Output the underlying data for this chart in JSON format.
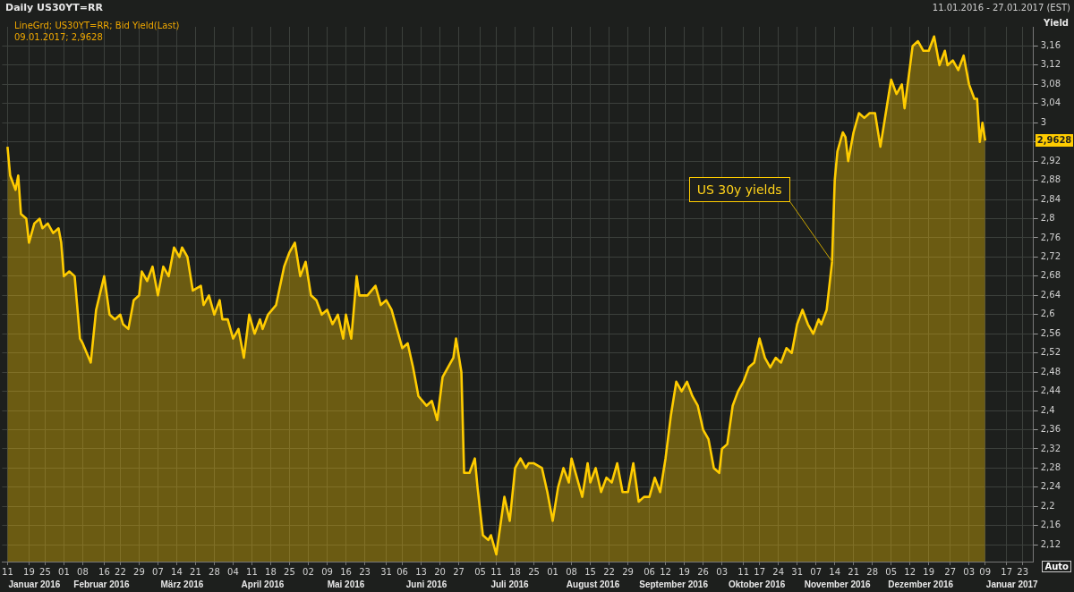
{
  "chart_data": {
    "type": "area",
    "title": "Daily US30YT=RR",
    "subtitle": "LineGrd; US30YT=RR; Bid Yield(Last)",
    "ylabel": "Yield",
    "annotations": [
      "09.01.2017; 2,9628",
      "11.01.2016 - 27.01.2017 (EST)",
      "Auto",
      "2,9628",
      {
        "text": "US 30y yields",
        "x": "2016-11-13",
        "y": 2.71
      }
    ],
    "x": [
      "2016-01-11",
      "2016-01-12",
      "2016-01-14",
      "2016-01-15",
      "2016-01-16",
      "2016-01-18",
      "2016-01-19",
      "2016-01-21",
      "2016-01-23",
      "2016-01-24",
      "2016-01-26",
      "2016-01-28",
      "2016-01-30",
      "2016-01-31",
      "2016-02-01",
      "2016-02-03",
      "2016-02-05",
      "2016-02-07",
      "2016-02-08",
      "2016-02-11",
      "2016-02-13",
      "2016-02-16",
      "2016-02-18",
      "2016-02-20",
      "2016-02-22",
      "2016-02-23",
      "2016-02-25",
      "2016-02-27",
      "2016-02-29",
      "2016-03-01",
      "2016-03-03",
      "2016-03-05",
      "2016-03-07",
      "2016-03-09",
      "2016-03-11",
      "2016-03-13",
      "2016-03-15",
      "2016-03-16",
      "2016-03-18",
      "2016-03-20",
      "2016-03-23",
      "2016-03-24",
      "2016-03-26",
      "2016-03-28",
      "2016-03-30",
      "2016-03-31",
      "2016-04-02",
      "2016-04-04",
      "2016-04-06",
      "2016-04-08",
      "2016-04-10",
      "2016-04-12",
      "2016-04-14",
      "2016-04-15",
      "2016-04-17",
      "2016-04-20",
      "2016-04-23",
      "2016-04-25",
      "2016-04-27",
      "2016-04-29",
      "2016-05-01",
      "2016-05-03",
      "2016-05-05",
      "2016-05-07",
      "2016-05-09",
      "2016-05-11",
      "2016-05-13",
      "2016-05-15",
      "2016-05-16",
      "2016-05-18",
      "2016-05-20",
      "2016-05-21",
      "2016-05-24",
      "2016-05-27",
      "2016-05-29",
      "2016-05-31",
      "2016-06-02",
      "2016-06-04",
      "2016-06-06",
      "2016-06-08",
      "2016-06-10",
      "2016-06-12",
      "2016-06-15",
      "2016-06-17",
      "2016-06-19",
      "2016-06-21",
      "2016-06-24",
      "2016-06-25",
      "2016-06-26",
      "2016-06-28",
      "2016-06-29",
      "2016-07-01",
      "2016-07-03",
      "2016-07-04",
      "2016-07-06",
      "2016-07-08",
      "2016-07-09",
      "2016-07-11",
      "2016-07-13",
      "2016-07-14",
      "2016-07-16",
      "2016-07-18",
      "2016-07-20",
      "2016-07-22",
      "2016-07-23",
      "2016-07-25",
      "2016-07-28",
      "2016-07-30",
      "2016-08-01",
      "2016-08-03",
      "2016-08-05",
      "2016-08-07",
      "2016-08-08",
      "2016-08-10",
      "2016-08-12",
      "2016-08-14",
      "2016-08-15",
      "2016-08-17",
      "2016-08-19",
      "2016-08-21",
      "2016-08-23",
      "2016-08-25",
      "2016-08-27",
      "2016-08-29",
      "2016-08-31",
      "2016-09-02",
      "2016-09-04",
      "2016-09-06",
      "2016-09-08",
      "2016-09-10",
      "2016-09-12",
      "2016-09-14",
      "2016-09-16",
      "2016-09-18",
      "2016-09-20",
      "2016-09-22",
      "2016-09-24",
      "2016-09-26",
      "2016-09-28",
      "2016-09-30",
      "2016-10-02",
      "2016-10-03",
      "2016-10-05",
      "2016-10-07",
      "2016-10-09",
      "2016-10-11",
      "2016-10-13",
      "2016-10-15",
      "2016-10-17",
      "2016-10-19",
      "2016-10-21",
      "2016-10-23",
      "2016-10-25",
      "2016-10-27",
      "2016-10-29",
      "2016-10-31",
      "2016-11-02",
      "2016-11-04",
      "2016-11-06",
      "2016-11-08",
      "2016-11-09",
      "2016-11-11",
      "2016-11-13",
      "2016-11-14",
      "2016-11-15",
      "2016-11-17",
      "2016-11-18",
      "2016-11-19",
      "2016-11-21",
      "2016-11-23",
      "2016-11-25",
      "2016-11-27",
      "2016-11-29",
      "2016-12-01",
      "2016-12-03",
      "2016-12-05",
      "2016-12-07",
      "2016-12-09",
      "2016-12-10",
      "2016-12-13",
      "2016-12-15",
      "2016-12-17",
      "2016-12-19",
      "2016-12-21",
      "2016-12-23",
      "2016-12-25",
      "2016-12-26",
      "2016-12-28",
      "2016-12-30",
      "2017-01-01",
      "2017-01-03",
      "2017-01-05",
      "2017-01-06",
      "2017-01-07",
      "2017-01-08",
      "2017-01-09"
    ],
    "series": [
      {
        "color": "#ffcc00",
        "values": [
          2.95,
          2.89,
          2.86,
          2.89,
          2.81,
          2.8,
          2.75,
          2.79,
          2.8,
          2.78,
          2.79,
          2.77,
          2.78,
          2.75,
          2.68,
          2.69,
          2.68,
          2.55,
          2.54,
          2.5,
          2.61,
          2.68,
          2.6,
          2.59,
          2.6,
          2.58,
          2.57,
          2.63,
          2.64,
          2.69,
          2.67,
          2.7,
          2.64,
          2.7,
          2.68,
          2.74,
          2.72,
          2.74,
          2.72,
          2.65,
          2.66,
          2.62,
          2.64,
          2.6,
          2.63,
          2.59,
          2.59,
          2.55,
          2.57,
          2.51,
          2.6,
          2.56,
          2.59,
          2.57,
          2.6,
          2.62,
          2.7,
          2.73,
          2.75,
          2.68,
          2.71,
          2.64,
          2.63,
          2.6,
          2.61,
          2.58,
          2.6,
          2.55,
          2.6,
          2.55,
          2.68,
          2.64,
          2.64,
          2.66,
          2.62,
          2.63,
          2.61,
          2.57,
          2.53,
          2.54,
          2.49,
          2.43,
          2.41,
          2.42,
          2.38,
          2.47,
          2.5,
          2.51,
          2.55,
          2.48,
          2.27,
          2.27,
          2.3,
          2.24,
          2.14,
          2.13,
          2.14,
          2.1,
          2.18,
          2.22,
          2.17,
          2.28,
          2.3,
          2.28,
          2.29,
          2.29,
          2.28,
          2.23,
          2.17,
          2.24,
          2.28,
          2.25,
          2.3,
          2.26,
          2.22,
          2.29,
          2.25,
          2.28,
          2.23,
          2.26,
          2.25,
          2.29,
          2.23,
          2.23,
          2.29,
          2.21,
          2.22,
          2.22,
          2.26,
          2.23,
          2.3,
          2.39,
          2.46,
          2.44,
          2.46,
          2.43,
          2.41,
          2.36,
          2.34,
          2.28,
          2.27,
          2.32,
          2.33,
          2.41,
          2.44,
          2.46,
          2.49,
          2.5,
          2.55,
          2.51,
          2.49,
          2.51,
          2.5,
          2.53,
          2.52,
          2.58,
          2.61,
          2.58,
          2.56,
          2.59,
          2.58,
          2.61,
          2.71,
          2.88,
          2.94,
          2.98,
          2.97,
          2.92,
          2.98,
          3.02,
          3.01,
          3.02,
          3.02,
          2.95,
          3.02,
          3.09,
          3.06,
          3.08,
          3.03,
          3.16,
          3.17,
          3.15,
          3.15,
          3.18,
          3.12,
          3.15,
          3.12,
          3.13,
          3.11,
          3.14,
          3.08,
          3.05,
          3.05,
          2.96,
          3.0,
          2.9628
        ]
      }
    ],
    "xlim": [
      "2016-01-09",
      "2017-01-27"
    ],
    "xticks": [
      {
        "value": "2016-01-11",
        "label": "11"
      },
      {
        "value": "2016-01-19",
        "label": "19"
      },
      {
        "value": "2016-01-25",
        "label": "25"
      },
      {
        "value": "2016-02-01",
        "label": "01"
      },
      {
        "value": "2016-02-08",
        "label": "08"
      },
      {
        "value": "2016-02-16",
        "label": "16"
      },
      {
        "value": "2016-02-22",
        "label": "22"
      },
      {
        "value": "2016-02-29",
        "label": "29"
      },
      {
        "value": "2016-03-07",
        "label": "07"
      },
      {
        "value": "2016-03-14",
        "label": "14"
      },
      {
        "value": "2016-03-21",
        "label": "21"
      },
      {
        "value": "2016-03-28",
        "label": "28"
      },
      {
        "value": "2016-04-04",
        "label": "04"
      },
      {
        "value": "2016-04-11",
        "label": "11"
      },
      {
        "value": "2016-04-18",
        "label": "18"
      },
      {
        "value": "2016-04-25",
        "label": "25"
      },
      {
        "value": "2016-05-02",
        "label": "02"
      },
      {
        "value": "2016-05-09",
        "label": "09"
      },
      {
        "value": "2016-05-16",
        "label": "16"
      },
      {
        "value": "2016-05-23",
        "label": "23"
      },
      {
        "value": "2016-05-31",
        "label": "31"
      },
      {
        "value": "2016-06-06",
        "label": "06"
      },
      {
        "value": "2016-06-13",
        "label": "13"
      },
      {
        "value": "2016-06-20",
        "label": "20"
      },
      {
        "value": "2016-06-27",
        "label": "27"
      },
      {
        "value": "2016-07-05",
        "label": "05"
      },
      {
        "value": "2016-07-11",
        "label": "11"
      },
      {
        "value": "2016-07-18",
        "label": "18"
      },
      {
        "value": "2016-07-25",
        "label": "25"
      },
      {
        "value": "2016-08-01",
        "label": "01"
      },
      {
        "value": "2016-08-08",
        "label": "08"
      },
      {
        "value": "2016-08-15",
        "label": "15"
      },
      {
        "value": "2016-08-22",
        "label": "22"
      },
      {
        "value": "2016-08-29",
        "label": "29"
      },
      {
        "value": "2016-09-06",
        "label": "06"
      },
      {
        "value": "2016-09-12",
        "label": "12"
      },
      {
        "value": "2016-09-19",
        "label": "19"
      },
      {
        "value": "2016-09-26",
        "label": "26"
      },
      {
        "value": "2016-10-03",
        "label": "03"
      },
      {
        "value": "2016-10-11",
        "label": "11"
      },
      {
        "value": "2016-10-17",
        "label": "17"
      },
      {
        "value": "2016-10-24",
        "label": "24"
      },
      {
        "value": "2016-10-31",
        "label": "31"
      },
      {
        "value": "2016-11-07",
        "label": "07"
      },
      {
        "value": "2016-11-14",
        "label": "14"
      },
      {
        "value": "2016-11-21",
        "label": "21"
      },
      {
        "value": "2016-11-28",
        "label": "28"
      },
      {
        "value": "2016-12-05",
        "label": "05"
      },
      {
        "value": "2016-12-12",
        "label": "12"
      },
      {
        "value": "2016-12-19",
        "label": "19"
      },
      {
        "value": "2016-12-27",
        "label": "27"
      },
      {
        "value": "2017-01-03",
        "label": "03"
      },
      {
        "value": "2017-01-09",
        "label": "09"
      },
      {
        "value": "2017-01-17",
        "label": "17"
      },
      {
        "value": "2017-01-23",
        "label": "23"
      }
    ],
    "x2lim": [
      "2016-01-09",
      "2017-01-27"
    ],
    "x2ticks": [
      {
        "value": "2016-01-21",
        "label": "Januar 2016"
      },
      {
        "value": "2016-02-15",
        "label": "Februar 2016"
      },
      {
        "value": "2016-03-16",
        "label": "März 2016"
      },
      {
        "value": "2016-04-15",
        "label": "April 2016"
      },
      {
        "value": "2016-05-16",
        "label": "Mai 2016"
      },
      {
        "value": "2016-06-15",
        "label": "Juni 2016"
      },
      {
        "value": "2016-07-16",
        "label": "Juli 2016"
      },
      {
        "value": "2016-08-16",
        "label": "August 2016"
      },
      {
        "value": "2016-09-15",
        "label": "September 2016"
      },
      {
        "value": "2016-10-16",
        "label": "Oktober 2016"
      },
      {
        "value": "2016-11-15",
        "label": "November 2016"
      },
      {
        "value": "2016-12-16",
        "label": "Dezember 2016"
      },
      {
        "value": "2017-01-19",
        "label": "Januar 2017"
      }
    ],
    "ylim": [
      2.085,
      3.2
    ],
    "yticks": [
      {
        "value": 2.12,
        "label": "2,12"
      },
      {
        "value": 2.16,
        "label": "2,16"
      },
      {
        "value": 2.2,
        "label": "2,2"
      },
      {
        "value": 2.24,
        "label": "2,24"
      },
      {
        "value": 2.28,
        "label": "2,28"
      },
      {
        "value": 2.32,
        "label": "2,32"
      },
      {
        "value": 2.36,
        "label": "2,36"
      },
      {
        "value": 2.4,
        "label": "2,4"
      },
      {
        "value": 2.44,
        "label": "2,44"
      },
      {
        "value": 2.48,
        "label": "2,48"
      },
      {
        "value": 2.52,
        "label": "2,52"
      },
      {
        "value": 2.56,
        "label": "2,56"
      },
      {
        "value": 2.6,
        "label": "2,6"
      },
      {
        "value": 2.64,
        "label": "2,64"
      },
      {
        "value": 2.68,
        "label": "2,68"
      },
      {
        "value": 2.72,
        "label": "2,72"
      },
      {
        "value": 2.76,
        "label": "2,76"
      },
      {
        "value": 2.8,
        "label": "2,8"
      },
      {
        "value": 2.84,
        "label": "2,84"
      },
      {
        "value": 2.88,
        "label": "2,88"
      },
      {
        "value": 2.92,
        "label": "2,92"
      },
      {
        "value": 2.96,
        "label": null
      },
      {
        "value": 3,
        "label": "3"
      },
      {
        "value": 3.04,
        "label": "3,04"
      },
      {
        "value": 3.08,
        "label": "3,08"
      },
      {
        "value": 3.12,
        "label": "3,12"
      },
      {
        "value": 3.16,
        "label": "3,16"
      }
    ],
    "grid": true
  }
}
